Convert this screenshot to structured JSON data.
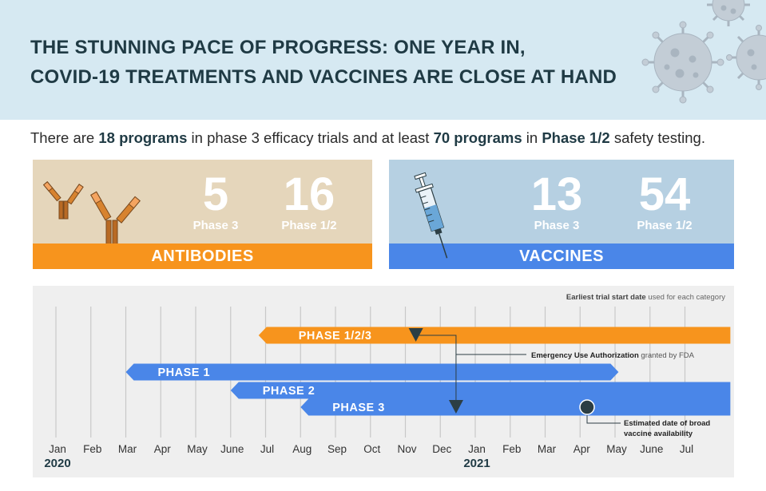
{
  "header": {
    "title_line1": "THE STUNNING PACE OF PROGRESS: ONE YEAR IN,",
    "title_line2": "COVID-19 TREATMENTS AND VACCINES ARE CLOSE AT HAND"
  },
  "intro": {
    "part1": "There are ",
    "bold1": "18 programs",
    "part2": " in phase 3 efficacy trials and at least ",
    "bold2": "70 programs",
    "part3": " in ",
    "bold3": "Phase 1/2",
    "part4": " safety testing."
  },
  "antibodies": {
    "label": "ANTIBODIES",
    "phase3_count": "5",
    "phase3_label": "Phase 3",
    "phase12_count": "16",
    "phase12_label": "Phase 1/2"
  },
  "vaccines": {
    "label": "VACCINES",
    "phase3_count": "13",
    "phase3_label": "Phase 3",
    "phase12_count": "54",
    "phase12_label": "Phase 1/2"
  },
  "colors": {
    "orange": "#f7941d",
    "blue": "#4a86e8",
    "dark": "#2c3e44",
    "header_bg": "#d6e9f2"
  },
  "chart_data": {
    "type": "timeline",
    "note_bold": "Earliest trial start date",
    "note_rest": " used for each category",
    "months": [
      "Jan",
      "Feb",
      "Mar",
      "Apr",
      "May",
      "June",
      "Jul",
      "Aug",
      "Sep",
      "Oct",
      "Nov",
      "Dec",
      "Jan",
      "Feb",
      "Mar",
      "Apr",
      "May",
      "June",
      "Jul"
    ],
    "year_labels": [
      {
        "text": "2020",
        "month_index": 0
      },
      {
        "text": "2021",
        "month_index": 12
      }
    ],
    "bars": [
      {
        "label": "PHASE 1/2/3",
        "start": 5.8,
        "end": 19.3,
        "color": "#f7941d",
        "row": 0
      },
      {
        "label": "PHASE 1",
        "start": 2.0,
        "end": 16.1,
        "color": "#4a86e8",
        "row": 1
      },
      {
        "label": "PHASE 2",
        "start": 5.0,
        "end": 19.3,
        "color": "#4a86e8",
        "row": 2
      },
      {
        "label": "PHASE 3",
        "start": 7.0,
        "end": 19.3,
        "color": "#4a86e8",
        "row": 3
      }
    ],
    "markers": [
      {
        "kind": "triangle",
        "month": 10.3,
        "row": 0
      },
      {
        "kind": "triangle",
        "month": 11.45,
        "row": 3
      },
      {
        "kind": "circle",
        "month": 15.2,
        "row": 3
      }
    ],
    "annotations": {
      "eua_bold": "Emergency Use Authorization",
      "eua_rest": " granted by FDA",
      "broad_line1": "Estimated date of broad",
      "broad_line2": "vaccine availability"
    }
  }
}
